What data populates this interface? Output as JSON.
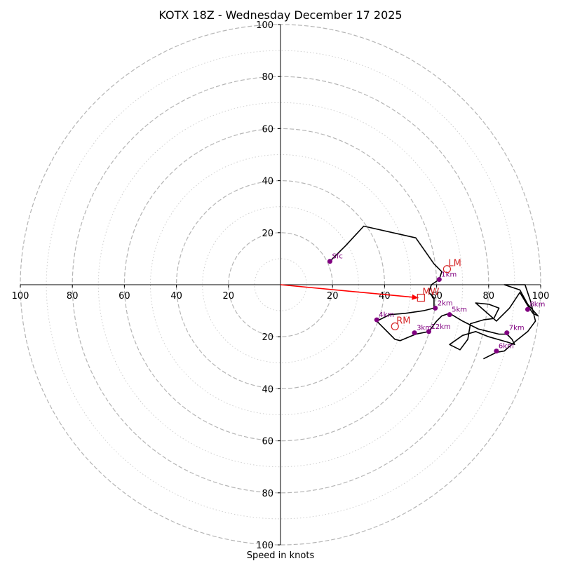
{
  "chart_data": {
    "type": "hodograph",
    "title": "KOTX 18Z - Wednesday December 17 2025",
    "xlabel": "Speed in knots",
    "range_max": 100,
    "ring_major": [
      20,
      40,
      60,
      80,
      100
    ],
    "ring_minor": [
      10,
      30,
      50,
      70,
      90
    ],
    "x_ticks": [
      {
        "label": "100",
        "value": -100
      },
      {
        "label": "80",
        "value": -80
      },
      {
        "label": "60",
        "value": -60
      },
      {
        "label": "40",
        "value": -40
      },
      {
        "label": "20",
        "value": -20
      },
      {
        "label": "20",
        "value": 20
      },
      {
        "label": "40",
        "value": 40
      },
      {
        "label": "60",
        "value": 60
      },
      {
        "label": "80",
        "value": 80
      },
      {
        "label": "100",
        "value": 100
      }
    ],
    "y_ticks": [
      {
        "label": "100",
        "value": 100
      },
      {
        "label": "80",
        "value": 80
      },
      {
        "label": "60",
        "value": 60
      },
      {
        "label": "40",
        "value": 40
      },
      {
        "label": "20",
        "value": 20
      },
      {
        "label": "20",
        "value": -20
      },
      {
        "label": "40",
        "value": -40
      },
      {
        "label": "60",
        "value": -60
      },
      {
        "label": "80",
        "value": -80
      },
      {
        "label": "100",
        "value": -100
      }
    ],
    "trace": [
      [
        19,
        9
      ],
      [
        25,
        15
      ],
      [
        32,
        22.5
      ],
      [
        52,
        18
      ],
      [
        59,
        8
      ],
      [
        62,
        5
      ],
      [
        61,
        2
      ],
      [
        58,
        0
      ],
      [
        57,
        -3
      ],
      [
        59,
        -5
      ],
      [
        59,
        -9
      ],
      [
        55,
        -10
      ],
      [
        48,
        -11
      ],
      [
        42,
        -11.5
      ],
      [
        37,
        -14
      ],
      [
        42,
        -19
      ],
      [
        44,
        -21
      ],
      [
        46,
        -21.5
      ],
      [
        52,
        -19
      ],
      [
        57,
        -18
      ],
      [
        60,
        -14
      ],
      [
        62,
        -12
      ],
      [
        65,
        -11
      ],
      [
        70,
        -14
      ],
      [
        76,
        -17
      ],
      [
        80,
        -18
      ],
      [
        84,
        -19
      ],
      [
        87,
        -19
      ],
      [
        89,
        -21
      ],
      [
        90,
        -23
      ],
      [
        87,
        -22
      ],
      [
        80,
        -20
      ],
      [
        75,
        -18
      ],
      [
        70,
        -19.5
      ],
      [
        65,
        -23
      ],
      [
        69,
        -25
      ],
      [
        72,
        -21
      ],
      [
        73,
        -15
      ],
      [
        78,
        -13.5
      ],
      [
        82,
        -13
      ],
      [
        84,
        -9
      ],
      [
        80,
        -7.5
      ],
      [
        75,
        -7
      ],
      [
        83,
        -14
      ],
      [
        88,
        -9
      ],
      [
        92,
        -3
      ],
      [
        95,
        -8
      ],
      [
        97,
        -11
      ],
      [
        99,
        -12
      ],
      [
        95,
        -7.5
      ],
      [
        92,
        -2
      ],
      [
        89,
        -1
      ],
      [
        86,
        0
      ],
      [
        94,
        0
      ],
      [
        96,
        -6
      ],
      [
        98,
        -14
      ],
      [
        95,
        -18
      ],
      [
        90,
        -22
      ],
      [
        86,
        -25.5
      ],
      [
        83,
        -26
      ],
      [
        78,
        -28.5
      ]
    ],
    "height_markers": [
      {
        "label": "Sfc",
        "u": 19,
        "v": 9
      },
      {
        "label": "1km",
        "u": 61,
        "v": 2
      },
      {
        "label": "2km",
        "u": 59.5,
        "v": -9
      },
      {
        "label": "3km",
        "u": 51.5,
        "v": -18.5
      },
      {
        "label": "4km",
        "u": 37,
        "v": -13.5
      },
      {
        "label": "5km",
        "u": 65,
        "v": -11.5
      },
      {
        "label": "6km",
        "u": 83,
        "v": -25.5
      },
      {
        "label": "7km",
        "u": 87,
        "v": -18.5
      },
      {
        "label": "8km",
        "u": 95,
        "v": -9.5
      },
      {
        "label": "12km",
        "u": 57,
        "v": -18
      }
    ],
    "motion_markers": [
      {
        "label": "LM",
        "u": 64,
        "v": 6,
        "shape": "circle"
      },
      {
        "label": "RM",
        "u": 44,
        "v": -16,
        "shape": "circle"
      },
      {
        "label": "MW",
        "u": 54,
        "v": -5,
        "shape": "square"
      }
    ],
    "mean_wind_vector": {
      "from": [
        0,
        0
      ],
      "to": [
        53,
        -5
      ]
    },
    "colors": {
      "trace": "#000000",
      "marker": "#800080",
      "motion": "#d62728",
      "vector": "#ff0000",
      "major_ring": "#b5b5b5",
      "minor_ring": "#cfcfcf"
    },
    "grid": true
  }
}
